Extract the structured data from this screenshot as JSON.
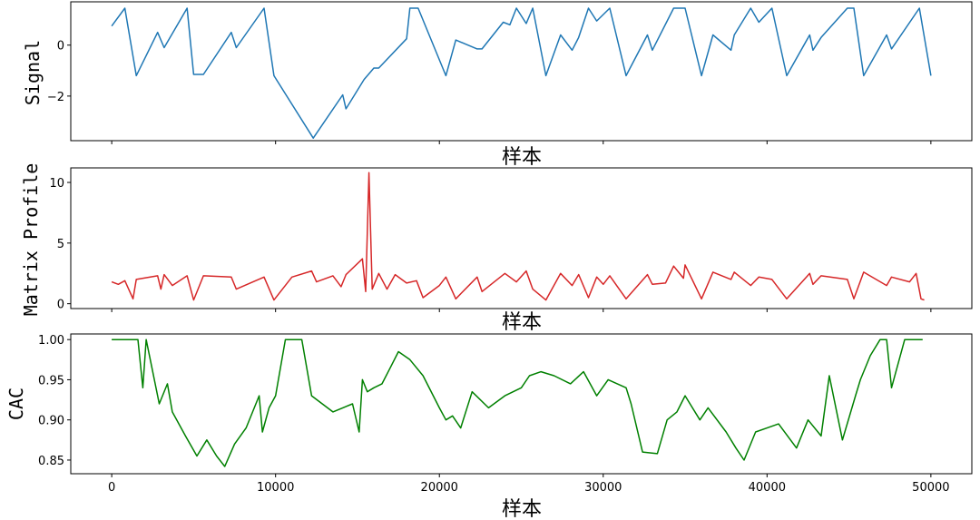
{
  "chart_data": [
    {
      "type": "line",
      "title": "",
      "xlabel": "样本",
      "ylabel": "Signal",
      "xlim": [
        -2500,
        52500
      ],
      "ylim": [
        -3.75,
        1.7
      ],
      "xticks": [
        0,
        10000,
        20000,
        30000,
        40000,
        50000
      ],
      "xtick_labels": [],
      "yticks": [
        0,
        -2
      ],
      "ytick_labels": [
        "0",
        "−2"
      ],
      "color": "#1f77b4",
      "series": [
        {
          "x": [
            0,
            800,
            1500,
            2800,
            3200,
            4600,
            5000,
            5600,
            7300,
            7600,
            9300,
            9900,
            12300,
            14100,
            14300,
            15400,
            16000,
            16300,
            18000,
            18200,
            18700,
            20400,
            21000,
            22300,
            22600,
            23900,
            24300,
            24700,
            25300,
            25700,
            26500,
            27400,
            28100,
            28500,
            29100,
            29600,
            30400,
            31400,
            32700,
            33000,
            34300,
            35000,
            36000,
            36700,
            37800,
            38000,
            39000,
            39500,
            40300,
            41200,
            42600,
            42800,
            43300,
            44900,
            45300,
            45900,
            47300,
            47600,
            49300,
            50000
          ],
          "y": [
            0.75,
            1.45,
            -1.2,
            0.5,
            -0.1,
            1.45,
            -1.15,
            -1.15,
            0.5,
            -0.1,
            1.45,
            -1.2,
            -3.65,
            -1.95,
            -2.5,
            -1.35,
            -0.9,
            -0.9,
            0.25,
            1.45,
            1.45,
            -1.2,
            0.2,
            -0.15,
            -0.15,
            0.9,
            0.8,
            1.45,
            0.85,
            1.45,
            -1.2,
            0.4,
            -0.2,
            0.3,
            1.45,
            0.95,
            1.45,
            -1.2,
            0.4,
            -0.2,
            1.45,
            1.45,
            -1.2,
            0.4,
            -0.2,
            0.4,
            1.45,
            0.9,
            1.45,
            -1.2,
            0.4,
            -0.2,
            0.3,
            1.45,
            1.45,
            -1.2,
            0.4,
            -0.15,
            1.45,
            -1.2
          ]
        }
      ]
    },
    {
      "type": "line",
      "title": "",
      "xlabel": "样本",
      "ylabel": "Matrix Profile",
      "xlim": [
        -2500,
        52500
      ],
      "ylim": [
        -0.4,
        11.2
      ],
      "xticks": [
        0,
        10000,
        20000,
        30000,
        40000,
        50000
      ],
      "xtick_labels": [],
      "yticks": [
        0,
        5,
        10
      ],
      "ytick_labels": [
        "0",
        "5",
        "10"
      ],
      "color": "#d62728",
      "series": [
        {
          "x": [
            0,
            400,
            800,
            1300,
            1500,
            2800,
            3000,
            3200,
            3700,
            4600,
            5000,
            5600,
            7300,
            7600,
            9300,
            9900,
            11000,
            12200,
            12500,
            13500,
            14000,
            14300,
            15300,
            15500,
            15700,
            15900,
            16300,
            16800,
            17300,
            18000,
            18600,
            19000,
            20000,
            20400,
            21000,
            22300,
            22600,
            24000,
            24700,
            25300,
            25700,
            26500,
            27400,
            28100,
            28500,
            29100,
            29600,
            30000,
            30400,
            31400,
            32700,
            33000,
            33800,
            34300,
            34900,
            35000,
            36000,
            36700,
            37800,
            38000,
            39000,
            39500,
            40300,
            41200,
            42600,
            42800,
            43300,
            44900,
            45300,
            45900,
            47300,
            47600,
            48700,
            49100,
            49400,
            49600
          ],
          "y": [
            1.8,
            1.6,
            1.9,
            0.4,
            2.0,
            2.3,
            1.2,
            2.4,
            1.5,
            2.3,
            0.3,
            2.3,
            2.2,
            1.2,
            2.2,
            0.3,
            2.2,
            2.7,
            1.8,
            2.3,
            1.4,
            2.4,
            3.7,
            1.0,
            10.8,
            1.2,
            2.5,
            1.2,
            2.4,
            1.7,
            1.9,
            0.5,
            1.5,
            2.2,
            0.4,
            2.2,
            1.0,
            2.5,
            1.8,
            2.7,
            1.2,
            0.3,
            2.5,
            1.5,
            2.4,
            0.5,
            2.2,
            1.6,
            2.3,
            0.4,
            2.4,
            1.6,
            1.7,
            3.1,
            2.1,
            3.2,
            0.4,
            2.6,
            2.0,
            2.6,
            1.5,
            2.2,
            2.0,
            0.4,
            2.5,
            1.6,
            2.3,
            2.0,
            0.4,
            2.6,
            1.5,
            2.2,
            1.8,
            2.5,
            0.4,
            0.3
          ]
        }
      ]
    },
    {
      "type": "line",
      "title": "",
      "xlabel": "样本",
      "ylabel": "CAC",
      "xlim": [
        -2500,
        52500
      ],
      "ylim": [
        0.833,
        1.007
      ],
      "xticks": [
        0,
        10000,
        20000,
        30000,
        40000,
        50000
      ],
      "xtick_labels": [
        "0",
        "10000",
        "20000",
        "30000",
        "40000",
        "50000"
      ],
      "yticks": [
        0.85,
        0.9,
        0.95,
        1.0
      ],
      "ytick_labels": [
        "0.85",
        "0.90",
        "0.95",
        "1.00"
      ],
      "color": "#008000",
      "series": [
        {
          "x": [
            0,
            1600,
            1900,
            2100,
            2400,
            2900,
            3400,
            3700,
            4500,
            5200,
            5800,
            6400,
            6900,
            7500,
            8200,
            9000,
            9200,
            9600,
            10000,
            10600,
            11000,
            11600,
            12200,
            13500,
            14700,
            15100,
            15300,
            15600,
            16000,
            16500,
            17000,
            17500,
            18200,
            19000,
            20000,
            20400,
            20800,
            21300,
            22000,
            23000,
            24000,
            25000,
            25500,
            26200,
            27000,
            28000,
            28800,
            29600,
            30300,
            31400,
            31700,
            32400,
            33300,
            33900,
            34500,
            35000,
            35900,
            36400,
            37500,
            38100,
            38600,
            39300,
            40000,
            40700,
            41800,
            42500,
            43300,
            43800,
            44600,
            45400,
            45700,
            46300,
            46900,
            47300,
            47600,
            48400,
            49500
          ],
          "y": [
            1.0,
            1.0,
            0.94,
            1.0,
            0.97,
            0.92,
            0.945,
            0.91,
            0.88,
            0.855,
            0.875,
            0.855,
            0.842,
            0.87,
            0.89,
            0.93,
            0.885,
            0.915,
            0.93,
            1.0,
            1.0,
            1.0,
            0.93,
            0.91,
            0.92,
            0.885,
            0.95,
            0.935,
            0.94,
            0.945,
            0.965,
            0.985,
            0.975,
            0.955,
            0.915,
            0.9,
            0.905,
            0.89,
            0.935,
            0.915,
            0.93,
            0.94,
            0.955,
            0.96,
            0.955,
            0.945,
            0.96,
            0.93,
            0.95,
            0.94,
            0.92,
            0.86,
            0.858,
            0.9,
            0.91,
            0.93,
            0.9,
            0.915,
            0.885,
            0.865,
            0.85,
            0.885,
            0.89,
            0.895,
            0.865,
            0.9,
            0.88,
            0.955,
            0.875,
            0.93,
            0.95,
            0.98,
            1.0,
            1.0,
            0.94,
            1.0,
            1.0
          ]
        }
      ]
    }
  ]
}
